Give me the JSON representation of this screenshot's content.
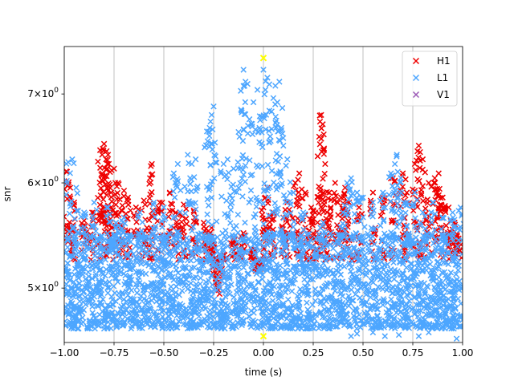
{
  "chart_data": {
    "type": "scatter",
    "title": "",
    "xlabel": "time (s)",
    "ylabel": "snr",
    "xlim": [
      -1.0,
      1.0
    ],
    "ylim": [
      4.55,
      7.6
    ],
    "yscale": "log",
    "grid": "x-only",
    "legend_position": "top-right",
    "x_ticks": [
      -1.0,
      -0.75,
      -0.5,
      -0.25,
      0.0,
      0.25,
      0.5,
      0.75,
      1.0
    ],
    "x_tick_labels": [
      "−1.00",
      "−0.75",
      "−0.50",
      "−0.25",
      "0.00",
      "0.25",
      "0.50",
      "0.75",
      "1.00"
    ],
    "y_ticks": [
      5,
      6,
      7
    ],
    "y_tick_labels": [
      {
        "base": "5",
        "exp": "0"
      },
      {
        "base": "6",
        "exp": "0"
      },
      {
        "base": "7",
        "exp": "0"
      }
    ],
    "series": [
      {
        "name": "H1",
        "color": "#ee0000",
        "marker": "x",
        "points": [
          [
            -0.99,
            6.12
          ],
          [
            -0.97,
            5.95
          ],
          [
            -0.95,
            5.8
          ],
          [
            -0.9,
            5.62
          ],
          [
            -0.86,
            5.7
          ],
          [
            -0.82,
            6.35
          ],
          [
            -0.81,
            6.1
          ],
          [
            -0.8,
            6.42
          ],
          [
            -0.79,
            6.25
          ],
          [
            -0.78,
            6.3
          ],
          [
            -0.77,
            5.95
          ],
          [
            -0.75,
            6.15
          ],
          [
            -0.73,
            6.0
          ],
          [
            -0.7,
            5.92
          ],
          [
            -0.68,
            5.85
          ],
          [
            -0.64,
            5.75
          ],
          [
            -0.6,
            5.82
          ],
          [
            -0.57,
            6.05
          ],
          [
            -0.56,
            6.2
          ],
          [
            -0.52,
            5.8
          ],
          [
            -0.47,
            5.9
          ],
          [
            -0.44,
            5.7
          ],
          [
            -0.4,
            5.78
          ],
          [
            -0.35,
            5.72
          ],
          [
            -0.3,
            5.6
          ],
          [
            -0.26,
            5.55
          ],
          [
            -0.25,
            5.4
          ],
          [
            -0.24,
            5.05
          ],
          [
            -0.22,
            4.95
          ],
          [
            -0.2,
            5.3
          ],
          [
            -0.15,
            5.45
          ],
          [
            -0.1,
            5.5
          ],
          [
            -0.06,
            5.35
          ],
          [
            -0.03,
            5.15
          ],
          [
            -0.02,
            5.2
          ],
          [
            0.0,
            5.75
          ],
          [
            0.02,
            5.95
          ],
          [
            0.05,
            5.7
          ],
          [
            0.1,
            5.65
          ],
          [
            0.12,
            5.8
          ],
          [
            0.16,
            6.0
          ],
          [
            0.18,
            6.1
          ],
          [
            0.21,
            5.9
          ],
          [
            0.24,
            5.75
          ],
          [
            0.26,
            5.7
          ],
          [
            0.28,
            6.5
          ],
          [
            0.29,
            6.75
          ],
          [
            0.3,
            6.35
          ],
          [
            0.31,
            6.2
          ],
          [
            0.33,
            5.9
          ],
          [
            0.36,
            6.0
          ],
          [
            0.39,
            5.85
          ],
          [
            0.41,
            5.95
          ],
          [
            0.43,
            5.8
          ],
          [
            0.48,
            5.75
          ],
          [
            0.55,
            5.9
          ],
          [
            0.6,
            5.85
          ],
          [
            0.65,
            6.05
          ],
          [
            0.7,
            6.1
          ],
          [
            0.72,
            5.9
          ],
          [
            0.76,
            6.2
          ],
          [
            0.78,
            6.4
          ],
          [
            0.8,
            6.25
          ],
          [
            0.83,
            6.0
          ],
          [
            0.86,
            6.05
          ],
          [
            0.88,
            6.1
          ],
          [
            0.9,
            5.85
          ],
          [
            0.93,
            5.75
          ],
          [
            0.96,
            5.6
          ],
          [
            0.98,
            5.45
          ]
        ]
      },
      {
        "name": "L1",
        "color": "#4da6ff",
        "marker": "x",
        "points": [
          [
            -0.98,
            6.22
          ],
          [
            -0.96,
            6.25
          ],
          [
            -0.94,
            5.95
          ],
          [
            -0.9,
            5.7
          ],
          [
            -0.85,
            5.8
          ],
          [
            -0.78,
            5.75
          ],
          [
            -0.74,
            5.6
          ],
          [
            -0.7,
            5.65
          ],
          [
            -0.62,
            5.7
          ],
          [
            -0.55,
            5.8
          ],
          [
            -0.5,
            5.75
          ],
          [
            -0.45,
            6.1
          ],
          [
            -0.43,
            6.2
          ],
          [
            -0.38,
            6.3
          ],
          [
            -0.36,
            6.2
          ],
          [
            -0.34,
            6.25
          ],
          [
            -0.28,
            6.45
          ],
          [
            -0.27,
            6.6
          ],
          [
            -0.26,
            6.75
          ],
          [
            -0.25,
            6.85
          ],
          [
            -0.2,
            6.2
          ],
          [
            -0.18,
            6.25
          ],
          [
            -0.15,
            6.15
          ],
          [
            -0.12,
            6.5
          ],
          [
            -0.11,
            6.8
          ],
          [
            -0.1,
            7.3
          ],
          [
            -0.09,
            7.15
          ],
          [
            -0.07,
            6.7
          ],
          [
            -0.05,
            6.9
          ],
          [
            -0.03,
            7.05
          ],
          [
            -0.02,
            6.6
          ],
          [
            0.0,
            7.3
          ],
          [
            0.01,
            7.05
          ],
          [
            0.02,
            7.2
          ],
          [
            0.03,
            6.8
          ],
          [
            0.05,
            6.95
          ],
          [
            0.06,
            7.1
          ],
          [
            0.07,
            6.9
          ],
          [
            0.08,
            7.15
          ],
          [
            0.09,
            6.6
          ],
          [
            0.1,
            6.4
          ],
          [
            0.12,
            6.25
          ],
          [
            0.15,
            5.9
          ],
          [
            0.2,
            5.7
          ],
          [
            0.3,
            5.6
          ],
          [
            0.4,
            5.7
          ],
          [
            0.42,
            6.0
          ],
          [
            0.44,
            6.05
          ],
          [
            0.47,
            5.9
          ],
          [
            0.5,
            5.85
          ],
          [
            0.55,
            5.8
          ],
          [
            0.6,
            5.9
          ],
          [
            0.64,
            6.1
          ],
          [
            0.66,
            6.2
          ],
          [
            0.67,
            6.3
          ],
          [
            0.69,
            6.05
          ],
          [
            0.72,
            5.8
          ],
          [
            0.76,
            5.9
          ],
          [
            0.8,
            5.7
          ],
          [
            0.85,
            5.8
          ],
          [
            0.9,
            5.65
          ],
          [
            0.95,
            5.7
          ],
          [
            0.99,
            5.75
          ],
          [
            0.44,
            4.6
          ],
          [
            0.47,
            4.62
          ],
          [
            0.55,
            4.63
          ],
          [
            0.61,
            4.6
          ],
          [
            0.68,
            4.61
          ],
          [
            0.78,
            4.6
          ],
          [
            0.83,
            4.63
          ],
          [
            0.97,
            4.58
          ]
        ],
        "dense_band": {
          "x_range": [
            -1.0,
            1.0
          ],
          "y_range": [
            4.66,
            5.5
          ]
        }
      },
      {
        "name": "V1",
        "color": "#9b59b6",
        "marker": "x",
        "points": []
      }
    ],
    "highlight_markers": [
      {
        "x": 0.0,
        "y": 7.45,
        "color": "#ffff00"
      },
      {
        "x": 0.0,
        "y": 4.6,
        "color": "#ffff00"
      }
    ]
  }
}
